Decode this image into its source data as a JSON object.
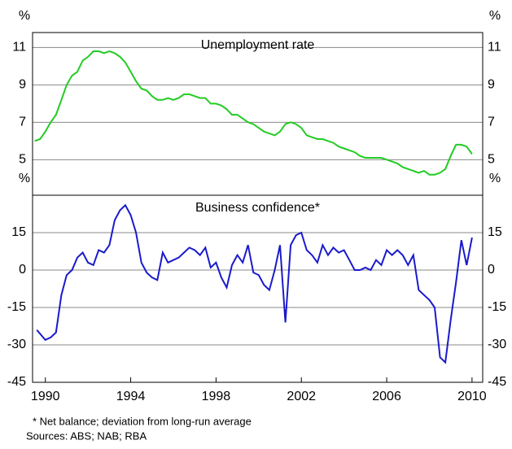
{
  "chart_data": [
    {
      "type": "line",
      "title": "Unemployment rate",
      "y_label": "%",
      "x": [
        1989.5,
        1989.75,
        1990,
        1990.25,
        1990.5,
        1990.75,
        1991,
        1991.25,
        1991.5,
        1991.75,
        1992,
        1992.25,
        1992.5,
        1992.75,
        1993,
        1993.25,
        1993.5,
        1993.75,
        1994,
        1994.25,
        1994.5,
        1994.75,
        1995,
        1995.25,
        1995.5,
        1995.75,
        1996,
        1996.25,
        1996.5,
        1996.75,
        1997,
        1997.25,
        1997.5,
        1997.75,
        1998,
        1998.25,
        1998.5,
        1998.75,
        1999,
        1999.25,
        1999.5,
        1999.75,
        2000,
        2000.25,
        2000.5,
        2000.75,
        2001,
        2001.25,
        2001.5,
        2001.75,
        2002,
        2002.25,
        2002.5,
        2002.75,
        2003,
        2003.25,
        2003.5,
        2003.75,
        2004,
        2004.25,
        2004.5,
        2004.75,
        2005,
        2005.25,
        2005.5,
        2005.75,
        2006,
        2006.25,
        2006.5,
        2006.75,
        2007,
        2007.25,
        2007.5,
        2007.75,
        2008,
        2008.25,
        2008.5,
        2008.75,
        2009,
        2009.25,
        2009.5,
        2009.75,
        2010
      ],
      "series": [
        {
          "name": "Unemployment rate",
          "color": "#22cc22",
          "values": [
            6.0,
            6.1,
            6.5,
            7.0,
            7.4,
            8.2,
            9.0,
            9.5,
            9.7,
            10.3,
            10.5,
            10.8,
            10.8,
            10.7,
            10.8,
            10.7,
            10.5,
            10.2,
            9.7,
            9.2,
            8.8,
            8.7,
            8.4,
            8.2,
            8.2,
            8.3,
            8.2,
            8.3,
            8.5,
            8.5,
            8.4,
            8.3,
            8.3,
            8.0,
            8.0,
            7.9,
            7.7,
            7.4,
            7.4,
            7.2,
            7.0,
            6.9,
            6.7,
            6.5,
            6.4,
            6.3,
            6.5,
            6.9,
            7.0,
            6.9,
            6.7,
            6.3,
            6.2,
            6.1,
            6.1,
            6.0,
            5.9,
            5.7,
            5.6,
            5.5,
            5.4,
            5.2,
            5.1,
            5.1,
            5.1,
            5.1,
            5.0,
            4.9,
            4.8,
            4.6,
            4.5,
            4.4,
            4.3,
            4.4,
            4.2,
            4.2,
            4.3,
            4.5,
            5.2,
            5.8,
            5.8,
            5.7,
            5.3
          ]
        }
      ],
      "xlim": [
        1989.4,
        2010.5
      ],
      "ylim": [
        3.1,
        11.8
      ],
      "yticks": [
        5,
        7,
        9,
        11
      ],
      "grid": true
    },
    {
      "type": "line",
      "title": "Business confidence*",
      "y_label": "%",
      "x": [
        1989.6,
        1990,
        1990.25,
        1990.5,
        1990.75,
        1991,
        1991.25,
        1991.5,
        1991.75,
        1992,
        1992.25,
        1992.5,
        1992.75,
        1993,
        1993.25,
        1993.5,
        1993.75,
        1994,
        1994.25,
        1994.5,
        1994.75,
        1995,
        1995.25,
        1995.5,
        1995.75,
        1996,
        1996.25,
        1996.5,
        1996.75,
        1997,
        1997.25,
        1997.5,
        1997.75,
        1998,
        1998.25,
        1998.5,
        1998.75,
        1999,
        1999.25,
        1999.5,
        1999.75,
        2000,
        2000.25,
        2000.5,
        2000.75,
        2001,
        2001.25,
        2001.5,
        2001.75,
        2002,
        2002.25,
        2002.5,
        2002.75,
        2003,
        2003.25,
        2003.5,
        2003.75,
        2004,
        2004.25,
        2004.5,
        2004.75,
        2005,
        2005.25,
        2005.5,
        2005.75,
        2006,
        2006.25,
        2006.5,
        2006.75,
        2007,
        2007.25,
        2007.5,
        2007.75,
        2008,
        2008.25,
        2008.5,
        2008.75,
        2009,
        2009.25,
        2009.5,
        2009.75,
        2010
      ],
      "series": [
        {
          "name": "Business confidence",
          "color": "#1a1acc",
          "values": [
            -24,
            -28,
            -27,
            -25,
            -10,
            -2,
            0,
            5,
            7,
            3,
            2,
            8,
            7,
            10,
            20,
            24,
            26,
            22,
            15,
            3,
            -1,
            -3,
            -4,
            7,
            3,
            4,
            5,
            7,
            9,
            8,
            6,
            9,
            1,
            3,
            -3,
            -7,
            2,
            6,
            3,
            10,
            -1,
            -2,
            -6,
            -8,
            0,
            10,
            -21,
            10,
            14,
            15,
            8,
            6,
            3,
            10,
            6,
            9,
            7,
            8,
            4,
            0,
            0,
            1,
            0,
            4,
            2,
            8,
            6,
            8,
            6,
            2,
            6,
            -8,
            -10,
            -12,
            -15,
            -35,
            -37,
            -20,
            -5,
            12,
            2,
            13
          ]
        }
      ],
      "xlim": [
        1989.4,
        2010.5
      ],
      "ylim": [
        -45,
        30
      ],
      "yticks": [
        -45,
        -30,
        -15,
        0,
        15
      ],
      "grid": true,
      "xticks": [
        1990,
        1994,
        1998,
        2002,
        2006,
        2010
      ]
    }
  ],
  "notes": [
    "*   Net balance; deviation from long-run average",
    "Sources: ABS; NAB; RBA"
  ]
}
